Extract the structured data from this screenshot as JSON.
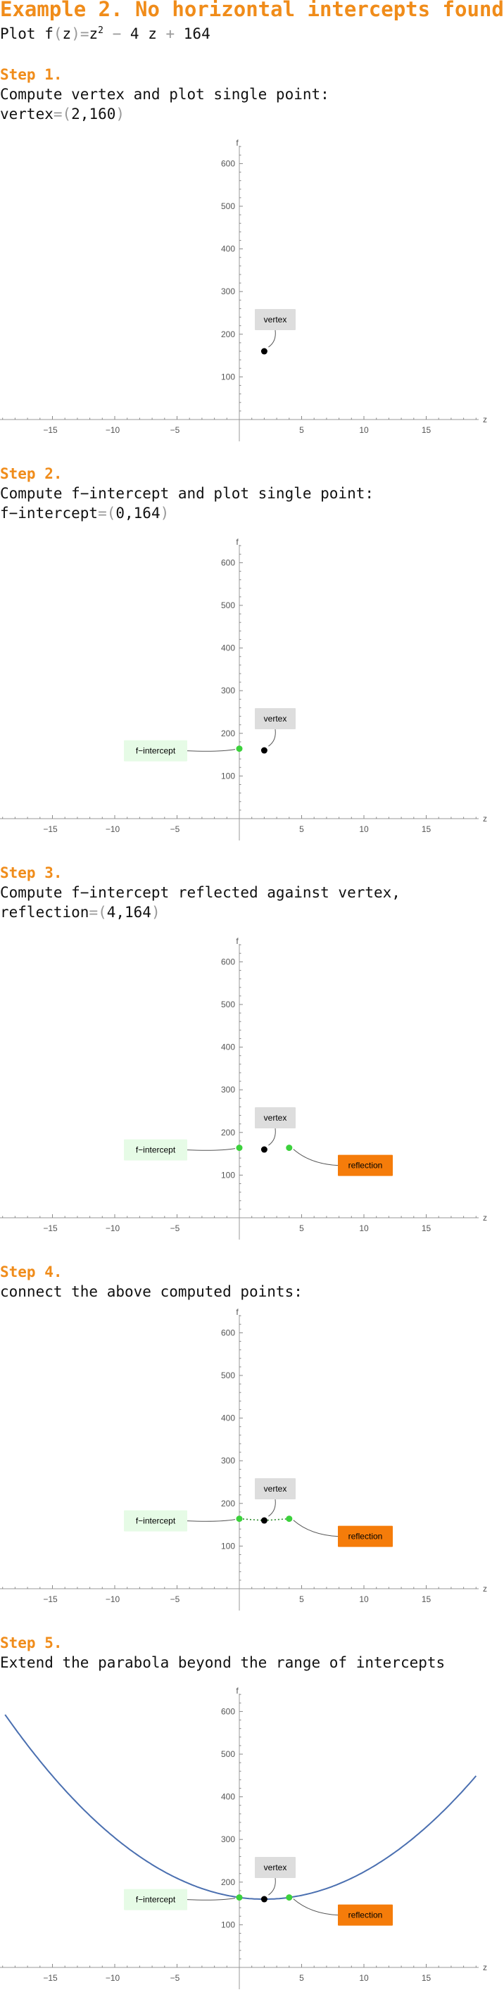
{
  "header": {
    "title": "Example 2. No horizontal intercepts found",
    "plot_prefix": "Plot ",
    "fn_name": "f",
    "lparen": "(",
    "var": "z",
    "rparen_eq": ")=",
    "z_sq": "z",
    "exp": "2",
    "minus": " − ",
    "lin": "4 z",
    "plus": " + ",
    "const": "164"
  },
  "steps": [
    {
      "heading": "Step 1.",
      "line1": "Compute vertex and plot single point:",
      "line2_label": "vertex",
      "line2_eq": "=(",
      "line2_val": "2,160",
      "line2_close": ")"
    },
    {
      "heading": "Step 2.",
      "line1": "Compute f−intercept and plot single point:",
      "line2_label": "f−intercept",
      "line2_eq": "=(",
      "line2_val": "0,164",
      "line2_close": ")"
    },
    {
      "heading": "Step 3.",
      "line1": "Compute f−intercept reflected against vertex,",
      "line2_label": "reflection",
      "line2_eq": "=(",
      "line2_val": "4,164",
      "line2_close": ")"
    },
    {
      "heading": "Step 4.",
      "line1": "connect the above computed points:"
    },
    {
      "heading": "Step 5.",
      "line1": "Extend the parabola beyond the range of intercepts"
    }
  ],
  "chart_data": [
    {
      "type": "scatter",
      "step": 1,
      "xlabel": "z",
      "ylabel": "f",
      "xlim": [
        -20,
        20
      ],
      "ylim": [
        -30,
        650
      ],
      "xticks": [
        -15,
        -10,
        -5,
        5,
        10,
        15
      ],
      "yticks": [
        100,
        200,
        300,
        400,
        500,
        600
      ],
      "points": [
        {
          "name": "vertex",
          "x": 2,
          "y": 160,
          "color": "#000000"
        }
      ],
      "labels": [
        {
          "text": "vertex",
          "point": "vertex",
          "bg": "#dddddd",
          "fg": "#000000"
        }
      ]
    },
    {
      "type": "scatter",
      "step": 2,
      "xlabel": "z",
      "ylabel": "f",
      "xlim": [
        -20,
        20
      ],
      "ylim": [
        -30,
        650
      ],
      "xticks": [
        -15,
        -10,
        -5,
        5,
        10,
        15
      ],
      "yticks": [
        100,
        200,
        300,
        400,
        500,
        600
      ],
      "points": [
        {
          "name": "vertex",
          "x": 2,
          "y": 160,
          "color": "#000000"
        },
        {
          "name": "f-intercept",
          "x": 0,
          "y": 164,
          "color": "#3cd13c"
        }
      ],
      "labels": [
        {
          "text": "vertex",
          "point": "vertex",
          "bg": "#dddddd",
          "fg": "#000000"
        },
        {
          "text": "f−intercept",
          "point": "f-intercept",
          "bg": "#e6fbe6",
          "fg": "#000000"
        }
      ]
    },
    {
      "type": "scatter",
      "step": 3,
      "xlabel": "z",
      "ylabel": "f",
      "xlim": [
        -20,
        20
      ],
      "ylim": [
        -30,
        650
      ],
      "xticks": [
        -15,
        -10,
        -5,
        5,
        10,
        15
      ],
      "yticks": [
        100,
        200,
        300,
        400,
        500,
        600
      ],
      "points": [
        {
          "name": "vertex",
          "x": 2,
          "y": 160,
          "color": "#000000"
        },
        {
          "name": "f-intercept",
          "x": 0,
          "y": 164,
          "color": "#3cd13c"
        },
        {
          "name": "reflection",
          "x": 4,
          "y": 164,
          "color": "#3cd13c"
        }
      ],
      "labels": [
        {
          "text": "vertex",
          "point": "vertex",
          "bg": "#dddddd",
          "fg": "#000000"
        },
        {
          "text": "f−intercept",
          "point": "f-intercept",
          "bg": "#e6fbe6",
          "fg": "#000000"
        },
        {
          "text": "reflection",
          "point": "reflection",
          "bg": "#f57c0a",
          "fg": "#000000"
        }
      ]
    },
    {
      "type": "line",
      "step": 4,
      "xlabel": "z",
      "ylabel": "f",
      "xlim": [
        -20,
        20
      ],
      "ylim": [
        -30,
        650
      ],
      "xticks": [
        -15,
        -10,
        -5,
        5,
        10,
        15
      ],
      "yticks": [
        100,
        200,
        300,
        400,
        500,
        600
      ],
      "points": [
        {
          "name": "vertex",
          "x": 2,
          "y": 160,
          "color": "#000000"
        },
        {
          "name": "f-intercept",
          "x": 0,
          "y": 164,
          "color": "#3cd13c"
        },
        {
          "name": "reflection",
          "x": 4,
          "y": 164,
          "color": "#3cd13c"
        }
      ],
      "connect": {
        "x": [
          0,
          2,
          4
        ],
        "style": "dotted",
        "color": "#2e8b2e"
      },
      "labels": [
        {
          "text": "vertex",
          "point": "vertex",
          "bg": "#dddddd",
          "fg": "#000000"
        },
        {
          "text": "f−intercept",
          "point": "f-intercept",
          "bg": "#e6fbe6",
          "fg": "#000000"
        },
        {
          "text": "reflection",
          "point": "reflection",
          "bg": "#f57c0a",
          "fg": "#000000"
        }
      ]
    },
    {
      "type": "line",
      "step": 5,
      "xlabel": "z",
      "ylabel": "f",
      "xlim": [
        -20,
        20
      ],
      "ylim": [
        -30,
        650
      ],
      "xticks": [
        -15,
        -10,
        -5,
        5,
        10,
        15
      ],
      "yticks": [
        100,
        200,
        300,
        400,
        500,
        600
      ],
      "points": [
        {
          "name": "vertex",
          "x": 2,
          "y": 160,
          "color": "#000000"
        },
        {
          "name": "f-intercept",
          "x": 0,
          "y": 164,
          "color": "#3cd13c"
        },
        {
          "name": "reflection",
          "x": 4,
          "y": 164,
          "color": "#3cd13c"
        }
      ],
      "curve": {
        "a": 1,
        "b": -4,
        "c": 164,
        "x_range": [
          -18.8,
          19
        ],
        "color": "#4a6fb0"
      },
      "labels": [
        {
          "text": "vertex",
          "point": "vertex",
          "bg": "#dddddd",
          "fg": "#000000"
        },
        {
          "text": "f−intercept",
          "point": "f-intercept",
          "bg": "#e6fbe6",
          "fg": "#000000"
        },
        {
          "text": "reflection",
          "point": "reflection",
          "bg": "#f57c0a",
          "fg": "#000000"
        }
      ]
    }
  ]
}
